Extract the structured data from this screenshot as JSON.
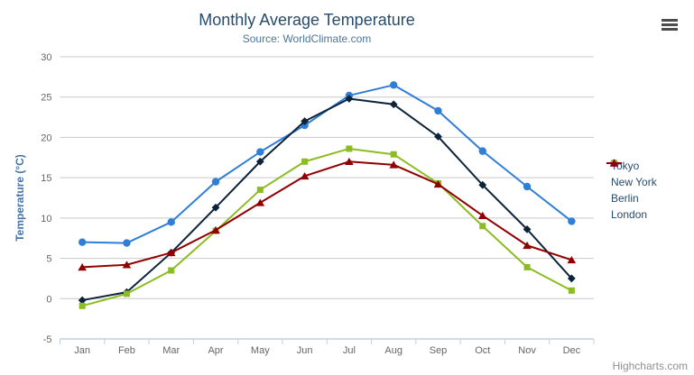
{
  "chart_data": {
    "type": "line",
    "title": "Monthly Average Temperature",
    "subtitle": "Source: WorldClimate.com",
    "xlabel": "",
    "ylabel": "Temperature (°C)",
    "ylim": [
      -5,
      30
    ],
    "y_tick_interval": 5,
    "grid": true,
    "legend_position": "right",
    "categories": [
      "Jan",
      "Feb",
      "Mar",
      "Apr",
      "May",
      "Jun",
      "Jul",
      "Aug",
      "Sep",
      "Oct",
      "Nov",
      "Dec"
    ],
    "series": [
      {
        "name": "Tokyo",
        "color": "#2f7ed8",
        "marker": "circle",
        "values": [
          7.0,
          6.9,
          9.5,
          14.5,
          18.2,
          21.5,
          25.2,
          26.5,
          23.3,
          18.3,
          13.9,
          9.6
        ]
      },
      {
        "name": "New York",
        "color": "#0d233a",
        "marker": "diamond",
        "values": [
          -0.2,
          0.8,
          5.7,
          11.3,
          17.0,
          22.0,
          24.8,
          24.1,
          20.1,
          14.1,
          8.6,
          2.5
        ]
      },
      {
        "name": "Berlin",
        "color": "#8bbc21",
        "marker": "square",
        "values": [
          -0.9,
          0.6,
          3.5,
          8.4,
          13.5,
          17.0,
          18.6,
          17.9,
          14.3,
          9.0,
          3.9,
          1.0
        ]
      },
      {
        "name": "London",
        "color": "#910000",
        "marker": "triangle",
        "values": [
          3.9,
          4.2,
          5.7,
          8.5,
          11.9,
          15.2,
          17.0,
          16.6,
          14.2,
          10.3,
          6.6,
          4.8
        ]
      }
    ]
  },
  "credits": {
    "label": "Highcharts.com"
  },
  "export_menu": {
    "icon": "hamburger"
  },
  "colors": {
    "title": "#274b6d",
    "subtitle": "#4d759e",
    "axis_label": "#666666",
    "axis_title": "#4572a7",
    "gridline": "#c9c9c9",
    "axis_line": "#c0d0e0",
    "legend_text": "#274b6d",
    "credits": "#8f8f8f",
    "menu_icon": "#4d4d4d",
    "background": "#ffffff"
  }
}
